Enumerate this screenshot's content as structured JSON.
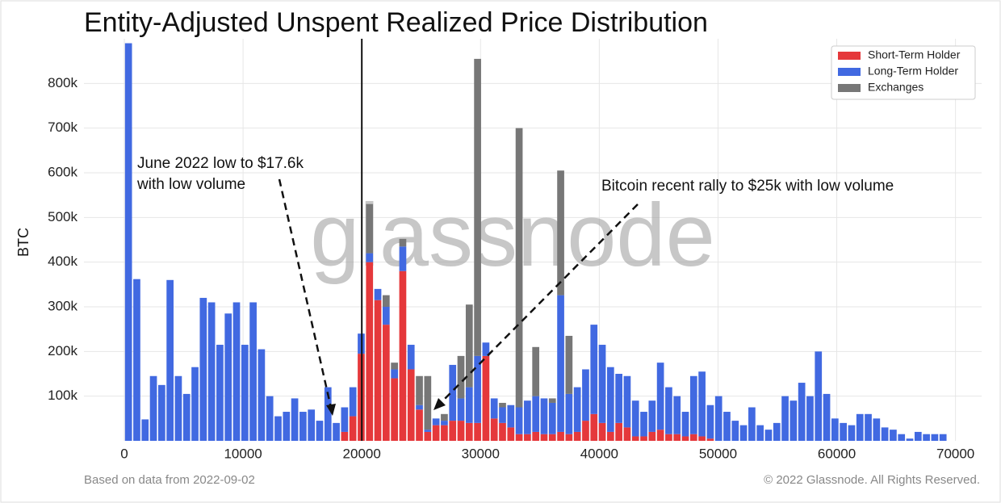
{
  "chart_data": {
    "type": "stacked-histogram",
    "title": "Entity-Adjusted Unspent Realized Price Distribution",
    "y_label": "BTC",
    "watermark": "glassnode",
    "footer_left": "Based on data from 2022-09-02",
    "footer_right": "© 2022 Glassnode. All Rights Reserved.",
    "annotations": [
      {
        "text": [
          "June 2022 low to $17.6k",
          "with low volume"
        ]
      },
      {
        "text": [
          "Bitcoin recent rally to $25k with low volume"
        ]
      }
    ],
    "vline": 20000,
    "legend": "upper right",
    "grid": true,
    "xlim": [
      -3400,
      72200
    ],
    "ylim": [
      0,
      900000
    ],
    "xticks": [
      0,
      10000,
      20000,
      30000,
      40000,
      50000,
      60000,
      70000
    ],
    "yticks": [
      {
        "value": 100000,
        "label": "100k"
      },
      {
        "value": 200000,
        "label": "200k"
      },
      {
        "value": 300000,
        "label": "300k"
      },
      {
        "value": 400000,
        "label": "400k"
      },
      {
        "value": 500000,
        "label": "500k"
      },
      {
        "value": 600000,
        "label": "600k"
      },
      {
        "value": 700000,
        "label": "700k"
      },
      {
        "value": 800000,
        "label": "800k"
      }
    ],
    "bins": [
      0,
      700,
      1400,
      2100,
      2800,
      3500,
      4200,
      4900,
      5600,
      6300,
      7000,
      7700,
      8400,
      9100,
      9800,
      10500,
      11200,
      11900,
      12600,
      13300,
      14000,
      14700,
      15400,
      16100,
      16800,
      17500,
      18200,
      18900,
      19600,
      20300,
      21000,
      21700,
      22400,
      23100,
      23800,
      24500,
      25200,
      25900,
      26600,
      27300,
      28000,
      28700,
      29400,
      30100,
      30800,
      31500,
      32200,
      32900,
      33600,
      34300,
      35000,
      35700,
      36400,
      37100,
      37800,
      38500,
      39200,
      39900,
      40600,
      41300,
      42000,
      42700,
      43400,
      44100,
      44800,
      45500,
      46200,
      46900,
      47600,
      48300,
      49000,
      49700,
      50400,
      51100,
      51800,
      52500,
      53200,
      53900,
      54600,
      55300,
      56000,
      56700,
      57400,
      58100,
      58800,
      59500,
      60200,
      60900,
      61600,
      62300,
      63000,
      63700,
      64400,
      65100,
      65800,
      66500,
      67200,
      67900,
      68600,
      69300
    ],
    "series": [
      {
        "name": "Short-Term Holder",
        "color": "#e5383b",
        "values": [
          0,
          0,
          0,
          0,
          0,
          0,
          0,
          0,
          0,
          0,
          0,
          0,
          0,
          0,
          0,
          0,
          0,
          0,
          0,
          0,
          0,
          0,
          0,
          0,
          0,
          0,
          20000,
          55000,
          195000,
          400000,
          315000,
          260000,
          140000,
          380000,
          160000,
          70000,
          20000,
          35000,
          35000,
          45000,
          45000,
          40000,
          40000,
          190000,
          50000,
          40000,
          30000,
          15000,
          15000,
          20000,
          15000,
          15000,
          20000,
          15000,
          20000,
          45000,
          60000,
          40000,
          20000,
          40000,
          30000,
          10000,
          10000,
          20000,
          25000,
          15000,
          15000,
          10000,
          15000,
          10000,
          5000,
          0,
          0,
          0,
          0,
          0,
          0,
          0,
          0,
          0,
          0,
          0,
          0,
          0,
          0,
          0,
          0,
          0,
          0,
          0,
          0,
          0,
          0,
          0,
          0,
          0,
          0,
          0,
          0
        ]
      },
      {
        "name": "Long-Term Holder",
        "color": "#4169e1",
        "values": [
          890000,
          362000,
          48000,
          145000,
          125000,
          360000,
          145000,
          105000,
          165000,
          320000,
          310000,
          215000,
          285000,
          310000,
          215000,
          310000,
          205000,
          100000,
          55000,
          65000,
          95000,
          65000,
          70000,
          45000,
          120000,
          40000,
          55000,
          65000,
          45000,
          20000,
          25000,
          40000,
          20000,
          55000,
          55000,
          10000,
          5000,
          15000,
          10000,
          125000,
          50000,
          80000,
          150000,
          30000,
          45000,
          35000,
          50000,
          60000,
          75000,
          80000,
          80000,
          70000,
          306000,
          90000,
          100000,
          115000,
          200000,
          175000,
          145000,
          110000,
          115000,
          80000,
          55000,
          70000,
          150000,
          105000,
          85000,
          55000,
          130000,
          145000,
          75000,
          100000,
          65000,
          45000,
          35000,
          75000,
          35000,
          25000,
          40000,
          100000,
          90000,
          130000,
          100000,
          200000,
          105000,
          50000,
          40000,
          35000,
          60000,
          60000,
          50000,
          30000,
          25000,
          15000,
          5000,
          20000,
          15000,
          15000,
          15000
        ]
      },
      {
        "name": "Exchanges",
        "color": "#777777",
        "values": [
          0,
          0,
          0,
          0,
          0,
          0,
          0,
          0,
          0,
          0,
          0,
          0,
          0,
          0,
          0,
          0,
          0,
          0,
          0,
          0,
          0,
          0,
          0,
          0,
          0,
          0,
          0,
          0,
          0,
          110000,
          0,
          26000,
          15000,
          17000,
          0,
          65000,
          120000,
          0,
          15000,
          0,
          95000,
          185000,
          665000,
          0,
          0,
          10000,
          0,
          625000,
          0,
          110000,
          0,
          10000,
          279000,
          130000,
          0,
          0,
          0,
          0,
          0,
          0,
          0,
          0,
          0,
          0,
          0,
          0,
          0,
          0,
          0,
          0,
          0,
          0,
          0,
          0,
          0,
          0,
          0,
          0,
          0,
          0,
          0,
          0,
          0,
          0,
          0,
          0,
          0,
          0,
          0,
          0,
          0,
          0,
          0,
          0,
          0,
          0,
          0,
          0,
          0
        ]
      }
    ]
  }
}
